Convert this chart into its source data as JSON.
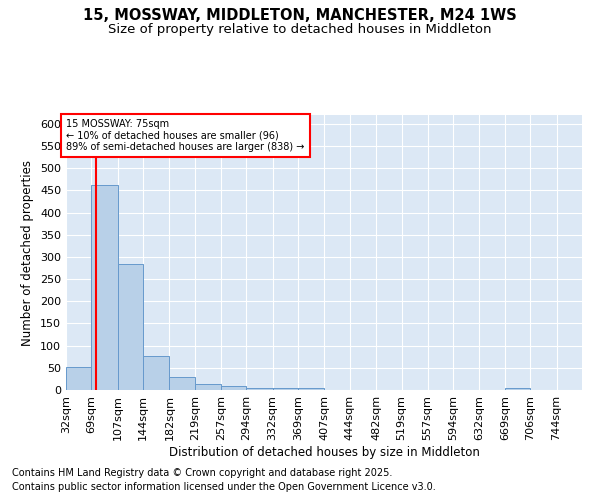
{
  "title1": "15, MOSSWAY, MIDDLETON, MANCHESTER, M24 1WS",
  "title2": "Size of property relative to detached houses in Middleton",
  "xlabel": "Distribution of detached houses by size in Middleton",
  "ylabel": "Number of detached properties",
  "footnote1": "Contains HM Land Registry data © Crown copyright and database right 2025.",
  "footnote2": "Contains public sector information licensed under the Open Government Licence v3.0.",
  "annotation_line1": "15 MOSSWAY: 75sqm",
  "annotation_line2": "← 10% of detached houses are smaller (96)",
  "annotation_line3": "89% of semi-detached houses are larger (838) →",
  "bar_edges": [
    32,
    69,
    107,
    144,
    182,
    219,
    257,
    294,
    332,
    369,
    407,
    444,
    482,
    519,
    557,
    594,
    632,
    669,
    706,
    744,
    781
  ],
  "bar_heights": [
    52,
    463,
    285,
    76,
    30,
    13,
    8,
    5,
    5,
    4,
    0,
    0,
    0,
    0,
    0,
    0,
    0,
    4,
    0,
    0
  ],
  "bar_color": "#b8d0e8",
  "bar_edge_color": "#6699cc",
  "red_line_x": 75,
  "ylim": [
    0,
    620
  ],
  "yticks": [
    0,
    50,
    100,
    150,
    200,
    250,
    300,
    350,
    400,
    450,
    500,
    550,
    600
  ],
  "background_color": "#dce8f5",
  "grid_color": "#ffffff",
  "title_fontsize": 10.5,
  "subtitle_fontsize": 9.5,
  "axis_label_fontsize": 8.5,
  "tick_fontsize": 8,
  "footnote_fontsize": 7
}
